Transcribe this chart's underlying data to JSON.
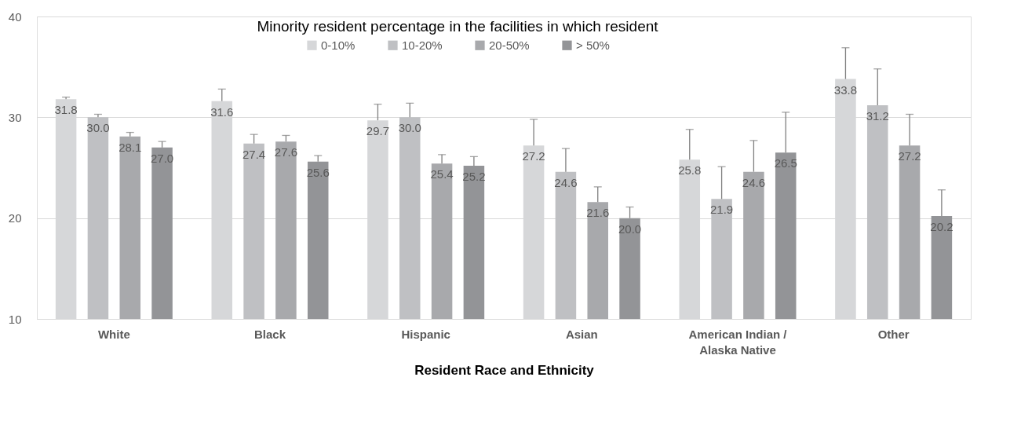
{
  "chart_data": {
    "type": "bar",
    "xlabel": "Resident Race and Ethnicity",
    "legend_title": "Minority resident percentage in the facilities in which resident",
    "categories": [
      "White",
      "Black",
      "Hispanic",
      "Asian",
      "American Indian / Alaska Native",
      "Other"
    ],
    "series": [
      {
        "name": "0-10%",
        "color": "#d6d7d9",
        "values": [
          31.8,
          31.6,
          29.7,
          27.2,
          25.8,
          33.8
        ],
        "value_labels": [
          "31.8",
          "31.6",
          "29.7",
          "27.2",
          "25.8",
          "33.8"
        ],
        "errors": [
          [
            31.8,
            32.0
          ],
          [
            31.6,
            32.8
          ],
          [
            29.7,
            31.3
          ],
          [
            27.2,
            29.8
          ],
          [
            25.8,
            28.8
          ],
          [
            33.8,
            36.9
          ]
        ]
      },
      {
        "name": "10-20%",
        "color": "#bfc0c3",
        "values": [
          30.0,
          27.4,
          30.0,
          24.6,
          21.9,
          31.2
        ],
        "value_labels": [
          "30.0",
          "27.4",
          "30.0",
          "24.6",
          "21.9",
          "31.2"
        ],
        "errors": [
          [
            30.0,
            30.3
          ],
          [
            27.4,
            28.3
          ],
          [
            30.0,
            31.4
          ],
          [
            24.6,
            26.9
          ],
          [
            21.9,
            25.1
          ],
          [
            31.2,
            34.8
          ]
        ]
      },
      {
        "name": "20-50%",
        "color": "#a8a9ac",
        "values": [
          28.1,
          27.6,
          25.4,
          21.6,
          24.6,
          27.2
        ],
        "value_labels": [
          "28.1",
          "27.6",
          "25.4",
          "21.6",
          "24.6",
          "27.2"
        ],
        "errors": [
          [
            28.1,
            28.5
          ],
          [
            27.6,
            28.2
          ],
          [
            25.4,
            26.3
          ],
          [
            21.6,
            23.1
          ],
          [
            24.6,
            27.7
          ],
          [
            27.2,
            30.3
          ]
        ]
      },
      {
        "name": "> 50%",
        "color": "#939497",
        "values": [
          27.0,
          25.6,
          25.2,
          20.0,
          26.5,
          20.2
        ],
        "value_labels": [
          "27.0",
          "25.6",
          "25.2",
          "20.0",
          "26.5",
          "20.2"
        ],
        "errors": [
          [
            27.0,
            27.6
          ],
          [
            25.6,
            26.2
          ],
          [
            25.2,
            26.1
          ],
          [
            20.0,
            21.1
          ],
          [
            26.5,
            30.5
          ],
          [
            20.2,
            22.8
          ]
        ]
      }
    ],
    "ylim": [
      10,
      40
    ],
    "yticks": [
      10,
      20,
      30,
      40
    ],
    "grid": "y",
    "legend": "top"
  }
}
